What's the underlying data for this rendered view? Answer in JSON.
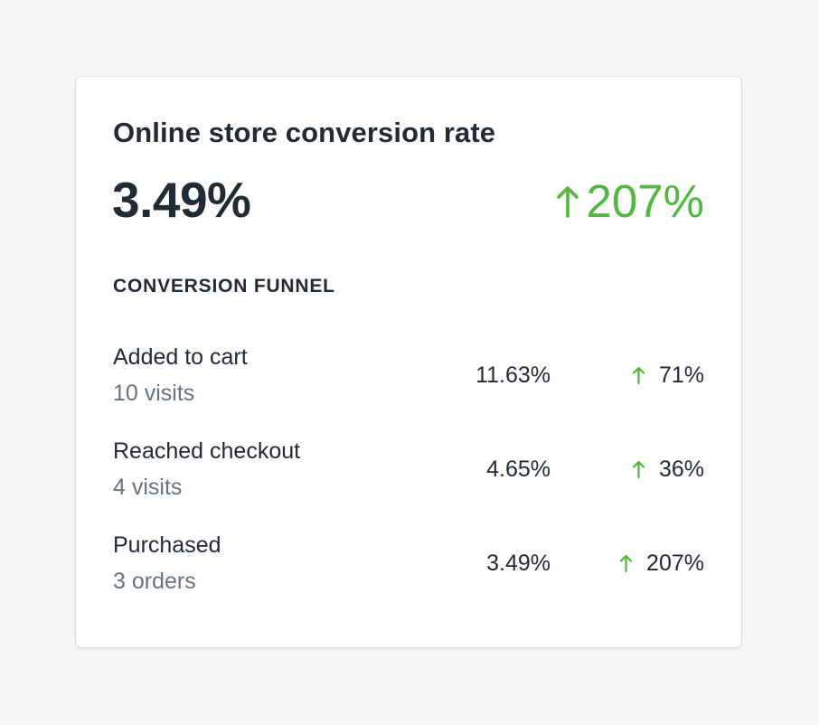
{
  "card": {
    "title": "Online store conversion rate",
    "value": "3.49%",
    "change": "207%",
    "change_icon": "arrow-up-icon",
    "funnel_heading": "CONVERSION FUNNEL"
  },
  "funnel": [
    {
      "label": "Added to cart",
      "sub": "10 visits",
      "rate": "11.63%",
      "change": "71%"
    },
    {
      "label": "Reached checkout",
      "sub": "4 visits",
      "rate": "4.65%",
      "change": "36%"
    },
    {
      "label": "Purchased",
      "sub": "3 orders",
      "rate": "3.49%",
      "change": "207%"
    }
  ],
  "colors": {
    "positive": "#50b83c",
    "text": "#212b36",
    "subdued": "#637381",
    "background": "#f4f6f8",
    "card": "#ffffff"
  }
}
